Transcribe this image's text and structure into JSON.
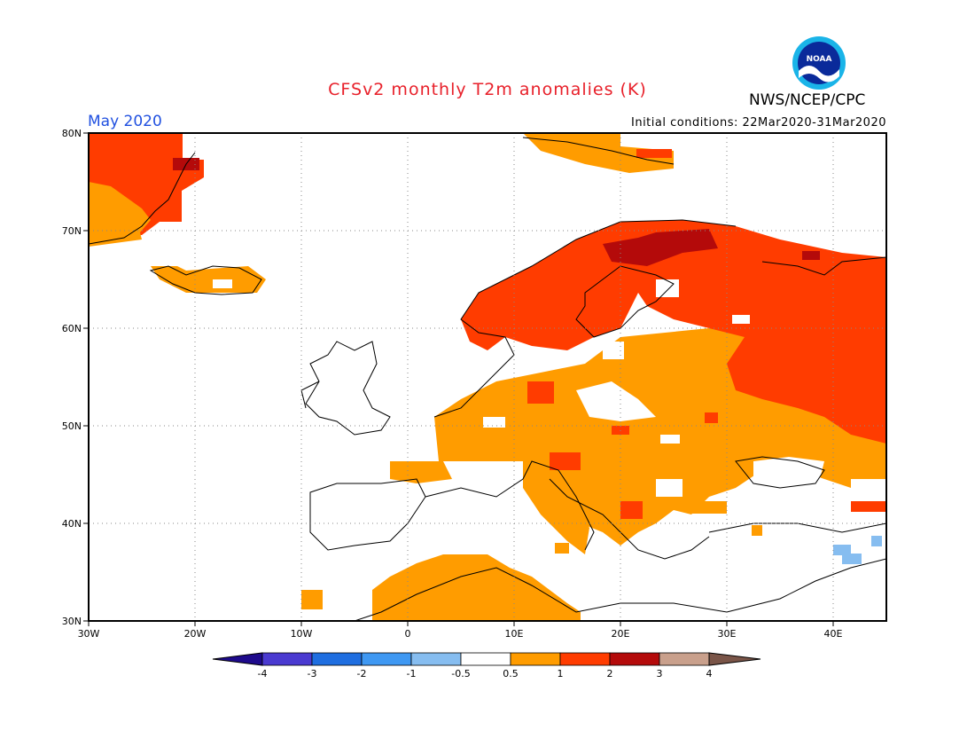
{
  "header": {
    "title": "CFSv2 monthly T2m anomalies (K)",
    "period": "May 2020",
    "initial_conditions": "Initial conditions: 22Mar2020-31Mar2020",
    "agency": "NWS/NCEP/CPC",
    "logo_text": "NOAA"
  },
  "axes": {
    "lat_ticks": [
      "80N",
      "70N",
      "60N",
      "50N",
      "40N",
      "30N"
    ],
    "lon_ticks": [
      "30W",
      "20W",
      "10W",
      "0",
      "10E",
      "20E",
      "30E",
      "40E"
    ],
    "lon_range": [
      -30,
      45
    ],
    "lat_range": [
      30,
      80
    ],
    "grid": "dotted"
  },
  "colorbar": {
    "labels": [
      "-4",
      "-3",
      "-2",
      "-1",
      "-0.5",
      "0.5",
      "1",
      "2",
      "3",
      "4"
    ],
    "colors": [
      "#1e0a8c",
      "#4a3ad0",
      "#1f6ee0",
      "#3f98f2",
      "#86bdf0",
      "#ffffff",
      "#ff9c00",
      "#ff3c00",
      "#b40a0a",
      "#c9a08c",
      "#7a5548"
    ]
  },
  "colors": {
    "anomaly_0_5_to_1": "#ff9c00",
    "anomaly_1_to_2": "#ff3c00",
    "anomaly_2_to_3": "#b40a0a",
    "anomaly_neg_0_5_to_neg_1": "#86bdf0"
  }
}
